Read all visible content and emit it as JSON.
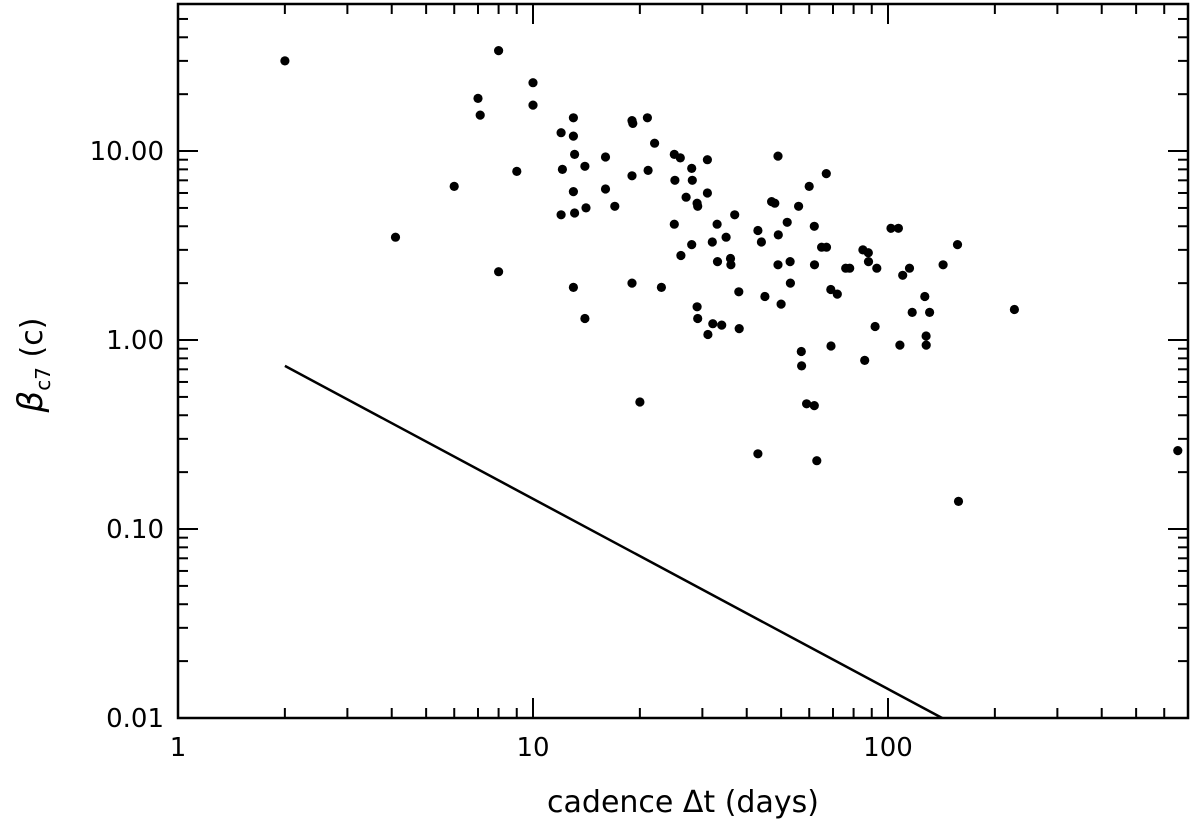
{
  "chart_data": {
    "type": "scatter",
    "xlabel": "cadence Δt (days)",
    "ylabel": {
      "base": "β",
      "sub": "c7",
      "unit": " (c)"
    },
    "xscale": "log",
    "yscale": "log",
    "xlim": [
      1,
      700
    ],
    "ylim": [
      0.01,
      60
    ],
    "x_tick_labels": [
      {
        "value": 1,
        "label": "1"
      },
      {
        "value": 10,
        "label": "10"
      },
      {
        "value": 100,
        "label": "100"
      }
    ],
    "y_tick_labels": [
      {
        "value": 0.01,
        "label": "0.01"
      },
      {
        "value": 0.1,
        "label": "0.10"
      },
      {
        "value": 1,
        "label": "1.00"
      },
      {
        "value": 10,
        "label": "10.00"
      }
    ],
    "grid": false,
    "legend": "none",
    "line": {
      "points": [
        [
          2,
          0.73
        ],
        [
          142,
          0.01
        ]
      ]
    },
    "points": [
      [
        2.0,
        30
      ],
      [
        4.1,
        3.5
      ],
      [
        6.0,
        6.5
      ],
      [
        7.0,
        19
      ],
      [
        7.1,
        15.5
      ],
      [
        8.0,
        34
      ],
      [
        8.0,
        2.3
      ],
      [
        9.0,
        7.8
      ],
      [
        10.0,
        23
      ],
      [
        10.0,
        17.5
      ],
      [
        12.0,
        12.5
      ],
      [
        12.1,
        8.0
      ],
      [
        12.0,
        4.6
      ],
      [
        13.0,
        15
      ],
      [
        13.0,
        12
      ],
      [
        13.1,
        9.6
      ],
      [
        13.0,
        6.1
      ],
      [
        13.1,
        4.7
      ],
      [
        13.0,
        1.9
      ],
      [
        14.0,
        8.3
      ],
      [
        14.1,
        5.0
      ],
      [
        14.0,
        1.3
      ],
      [
        16.0,
        9.3
      ],
      [
        16.0,
        6.3
      ],
      [
        17.0,
        5.1
      ],
      [
        19.0,
        14.5
      ],
      [
        19.1,
        14.0
      ],
      [
        19.0,
        7.4
      ],
      [
        19.0,
        2.0
      ],
      [
        20.0,
        0.47
      ],
      [
        21.0,
        15
      ],
      [
        21.1,
        7.9
      ],
      [
        22.0,
        11
      ],
      [
        23.0,
        1.9
      ],
      [
        25.0,
        9.6
      ],
      [
        25.1,
        7.0
      ],
      [
        25.0,
        4.1
      ],
      [
        26.0,
        9.2
      ],
      [
        26.1,
        2.8
      ],
      [
        27.0,
        5.7
      ],
      [
        28.0,
        8.1
      ],
      [
        28.1,
        7.0
      ],
      [
        28.0,
        3.2
      ],
      [
        29.0,
        5.3
      ],
      [
        29.1,
        5.1
      ],
      [
        29.0,
        1.5
      ],
      [
        29.1,
        1.3
      ],
      [
        31.0,
        9.0
      ],
      [
        31.0,
        6.0
      ],
      [
        31.1,
        1.07
      ],
      [
        32.0,
        3.3
      ],
      [
        32.1,
        1.22
      ],
      [
        33.0,
        4.1
      ],
      [
        33.1,
        2.6
      ],
      [
        34.0,
        1.2
      ],
      [
        35.0,
        3.5
      ],
      [
        36.0,
        2.7
      ],
      [
        36.1,
        2.5
      ],
      [
        37.0,
        4.6
      ],
      [
        38.0,
        1.8
      ],
      [
        38.1,
        1.15
      ],
      [
        43.0,
        3.8
      ],
      [
        43.0,
        0.25
      ],
      [
        44.0,
        3.3
      ],
      [
        45.0,
        1.7
      ],
      [
        47.0,
        5.4
      ],
      [
        48.0,
        5.3
      ],
      [
        49.0,
        9.4
      ],
      [
        49.1,
        3.6
      ],
      [
        49.0,
        2.5
      ],
      [
        50.0,
        1.55
      ],
      [
        52.0,
        4.2
      ],
      [
        53.0,
        2.6
      ],
      [
        53.1,
        2.0
      ],
      [
        56.0,
        5.1
      ],
      [
        57.0,
        0.87
      ],
      [
        57.1,
        0.73
      ],
      [
        59.0,
        0.46
      ],
      [
        60.0,
        6.5
      ],
      [
        62.0,
        4.0
      ],
      [
        62.1,
        2.5
      ],
      [
        62.0,
        0.45
      ],
      [
        63.0,
        0.23
      ],
      [
        65.0,
        3.1
      ],
      [
        67.0,
        7.6
      ],
      [
        67.1,
        3.1
      ],
      [
        69.0,
        1.85
      ],
      [
        69.1,
        0.93
      ],
      [
        72.0,
        1.75
      ],
      [
        76.0,
        2.4
      ],
      [
        78.0,
        2.4
      ],
      [
        85.0,
        3.0
      ],
      [
        86.0,
        0.78
      ],
      [
        88.0,
        2.9
      ],
      [
        88.1,
        2.6
      ],
      [
        92.0,
        1.18
      ],
      [
        93.0,
        2.4
      ],
      [
        102.0,
        3.9
      ],
      [
        107.0,
        3.9
      ],
      [
        108.0,
        0.94
      ],
      [
        110.0,
        2.2
      ],
      [
        115.0,
        2.4
      ],
      [
        117.0,
        1.4
      ],
      [
        127.0,
        1.7
      ],
      [
        128.0,
        1.05
      ],
      [
        128.1,
        0.94
      ],
      [
        131.0,
        1.4
      ],
      [
        143.0,
        2.5
      ],
      [
        157.0,
        3.2
      ],
      [
        158.0,
        0.14
      ],
      [
        227.0,
        1.45
      ],
      [
        655.0,
        0.26
      ]
    ]
  }
}
